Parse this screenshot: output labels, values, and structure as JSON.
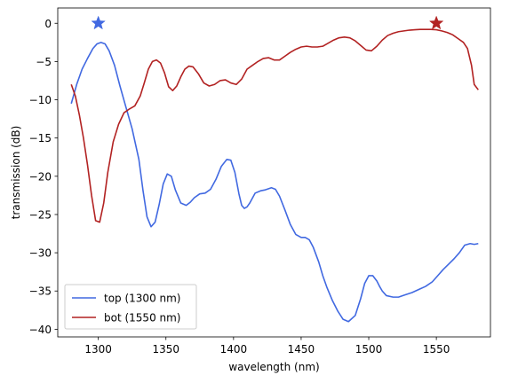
{
  "chart_data": {
    "type": "line",
    "title": "",
    "xlabel": "wavelength (nm)",
    "ylabel": "transmission (dB)",
    "xlim": [
      1270,
      1590
    ],
    "ylim": [
      -41,
      2
    ],
    "xticks": [
      1300,
      1350,
      1400,
      1450,
      1500,
      1550
    ],
    "yticks": [
      0,
      -5,
      -10,
      -15,
      -20,
      -25,
      -30,
      -35,
      -40
    ],
    "grid": false,
    "legend_position": "lower-left",
    "series": [
      {
        "name": "top (1300 nm)",
        "color": "#4169e1",
        "x": [
          1280,
          1284,
          1288,
          1292,
          1296,
          1299,
          1302,
          1305,
          1308,
          1312,
          1316,
          1320,
          1325,
          1330,
          1333,
          1336,
          1339,
          1342,
          1345,
          1348,
          1351,
          1354,
          1357,
          1361,
          1365,
          1368,
          1371,
          1375,
          1379,
          1383,
          1387,
          1391,
          1395,
          1398,
          1401,
          1404,
          1406,
          1408,
          1410,
          1412,
          1416,
          1420,
          1423,
          1428,
          1431,
          1434,
          1438,
          1442,
          1446,
          1450,
          1453,
          1456,
          1459,
          1463,
          1466,
          1469,
          1473,
          1477,
          1481,
          1485,
          1490,
          1494,
          1497,
          1500,
          1503,
          1506,
          1508,
          1510,
          1513,
          1518,
          1522,
          1527,
          1532,
          1537,
          1542,
          1547,
          1551,
          1555,
          1559,
          1563,
          1567,
          1571,
          1575,
          1578,
          1581
        ],
        "y": [
          -10.5,
          -8.0,
          -6.0,
          -4.6,
          -3.3,
          -2.7,
          -2.5,
          -2.7,
          -3.6,
          -5.5,
          -8.2,
          -10.7,
          -13.8,
          -17.8,
          -21.8,
          -25.3,
          -26.6,
          -26.0,
          -23.7,
          -21.0,
          -19.7,
          -20.0,
          -21.8,
          -23.5,
          -23.8,
          -23.4,
          -22.8,
          -22.3,
          -22.2,
          -21.7,
          -20.4,
          -18.7,
          -17.8,
          -17.9,
          -19.5,
          -22.3,
          -23.8,
          -24.2,
          -24.0,
          -23.5,
          -22.2,
          -21.9,
          -21.8,
          -21.5,
          -21.7,
          -22.6,
          -24.4,
          -26.3,
          -27.6,
          -28.0,
          -28.0,
          -28.3,
          -29.3,
          -31.2,
          -33.0,
          -34.5,
          -36.2,
          -37.6,
          -38.7,
          -39.0,
          -38.2,
          -36.0,
          -34.0,
          -33.0,
          -33.0,
          -33.7,
          -34.4,
          -35.0,
          -35.6,
          -35.8,
          -35.8,
          -35.5,
          -35.2,
          -34.8,
          -34.4,
          -33.8,
          -33.0,
          -32.2,
          -31.5,
          -30.8,
          -30.0,
          -29.0,
          -28.8,
          -28.9,
          -28.8
        ],
        "marker": {
          "x": 1300,
          "y": 0,
          "symbol": "star"
        }
      },
      {
        "name": "bot (1550 nm)",
        "color": "#b22222",
        "x": [
          1280,
          1283,
          1286,
          1289,
          1292,
          1295,
          1298,
          1301,
          1304,
          1307,
          1311,
          1315,
          1319,
          1323,
          1327,
          1331,
          1334,
          1337,
          1340,
          1343,
          1346,
          1349,
          1352,
          1355,
          1358,
          1361,
          1364,
          1367,
          1370,
          1374,
          1378,
          1382,
          1386,
          1390,
          1394,
          1398,
          1402,
          1406,
          1410,
          1414,
          1418,
          1422,
          1426,
          1430,
          1434,
          1438,
          1442,
          1446,
          1450,
          1454,
          1458,
          1462,
          1466,
          1470,
          1474,
          1478,
          1482,
          1486,
          1490,
          1494,
          1498,
          1502,
          1506,
          1510,
          1514,
          1518,
          1522,
          1526,
          1530,
          1534,
          1538,
          1542,
          1546,
          1550,
          1554,
          1558,
          1562,
          1566,
          1570,
          1573,
          1576,
          1578,
          1581
        ],
        "y": [
          -8.0,
          -9.5,
          -12.0,
          -15.0,
          -18.5,
          -22.5,
          -25.8,
          -26.0,
          -23.5,
          -19.5,
          -15.5,
          -13.2,
          -11.7,
          -11.2,
          -10.8,
          -9.5,
          -7.8,
          -6.0,
          -5.0,
          -4.8,
          -5.2,
          -6.5,
          -8.3,
          -8.8,
          -8.2,
          -7.0,
          -6.0,
          -5.6,
          -5.7,
          -6.6,
          -7.8,
          -8.2,
          -8.0,
          -7.5,
          -7.4,
          -7.8,
          -8.0,
          -7.3,
          -6.0,
          -5.5,
          -5.0,
          -4.6,
          -4.5,
          -4.8,
          -4.8,
          -4.3,
          -3.8,
          -3.4,
          -3.1,
          -3.0,
          -3.1,
          -3.1,
          -3.0,
          -2.6,
          -2.2,
          -1.9,
          -1.8,
          -1.9,
          -2.3,
          -2.9,
          -3.5,
          -3.6,
          -3.0,
          -2.2,
          -1.6,
          -1.3,
          -1.1,
          -1.0,
          -0.9,
          -0.85,
          -0.8,
          -0.8,
          -0.8,
          -0.85,
          -1.0,
          -1.2,
          -1.5,
          -2.0,
          -2.5,
          -3.3,
          -5.5,
          -8.0,
          -8.7
        ],
        "marker": {
          "x": 1550,
          "y": 0,
          "symbol": "star"
        }
      }
    ]
  }
}
